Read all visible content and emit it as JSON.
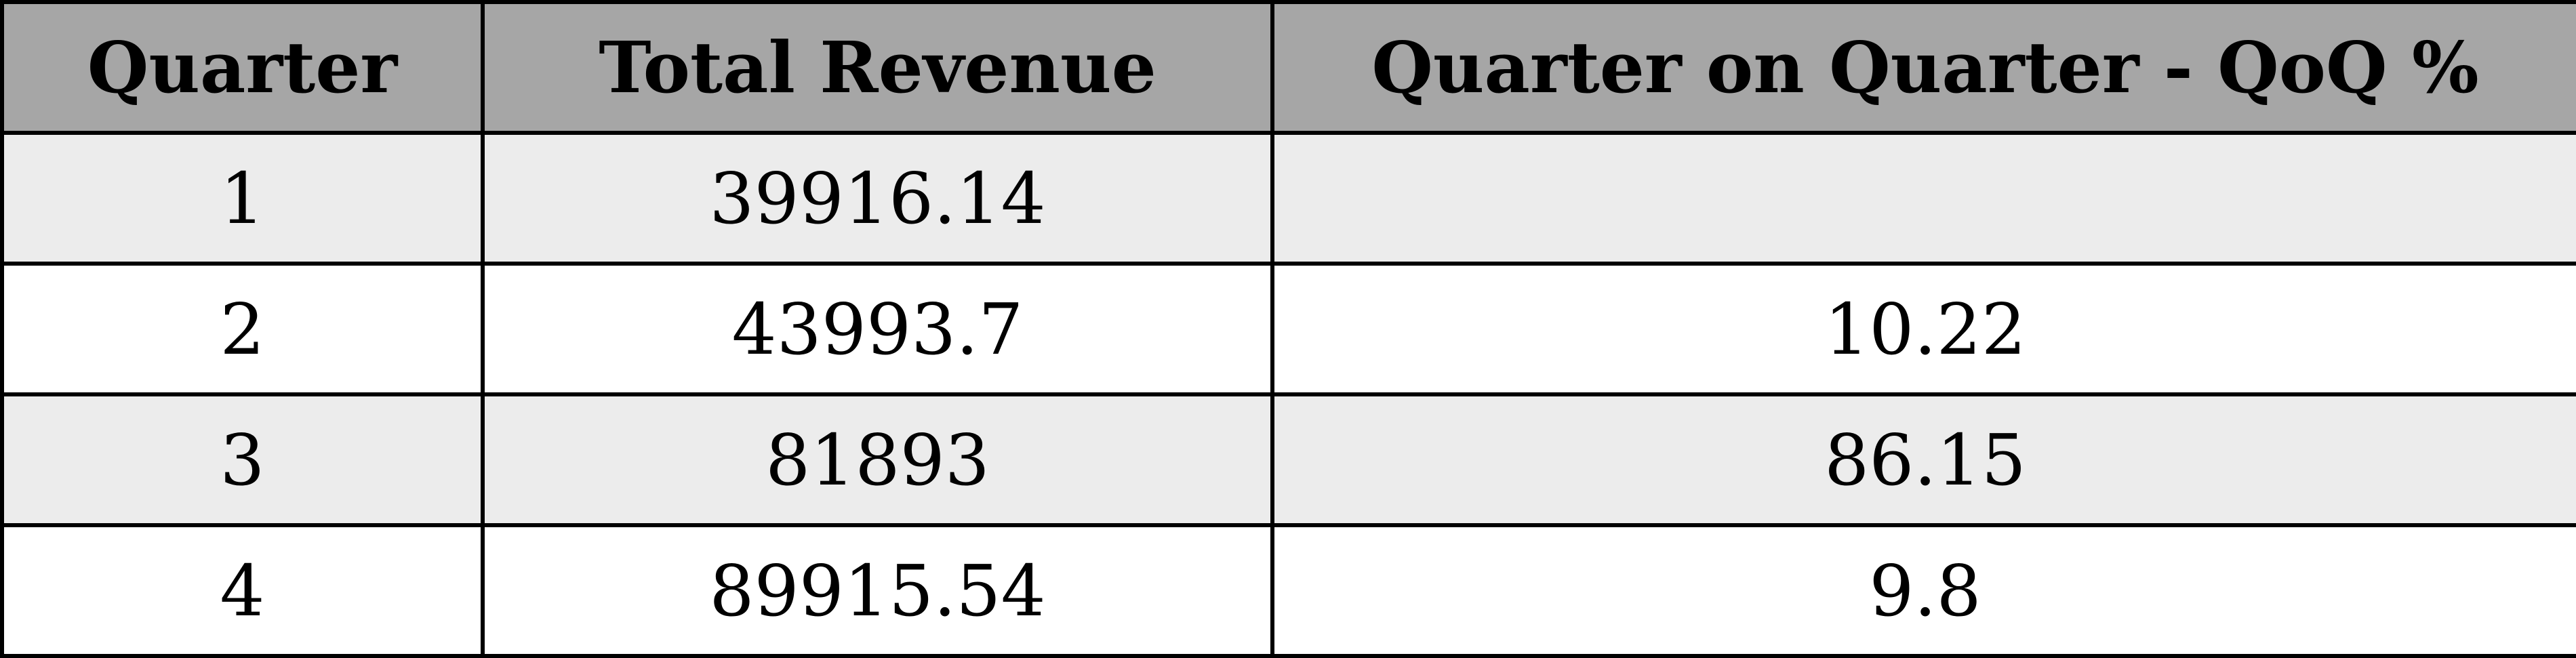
{
  "chart_data": {
    "type": "table",
    "columns": [
      "Quarter",
      "Total Revenue",
      "Quarter on Quarter - QoQ %"
    ],
    "rows": [
      [
        "1",
        "39916.14",
        ""
      ],
      [
        "2",
        "43993.7",
        "10.22"
      ],
      [
        "3",
        "81893",
        "86.15"
      ],
      [
        "4",
        "89915.54",
        "9.8"
      ]
    ]
  },
  "colors": {
    "header_background": "#a6a6a6",
    "row_shaded": "#ececec",
    "row_plain": "#ffffff",
    "border": "#000000"
  }
}
